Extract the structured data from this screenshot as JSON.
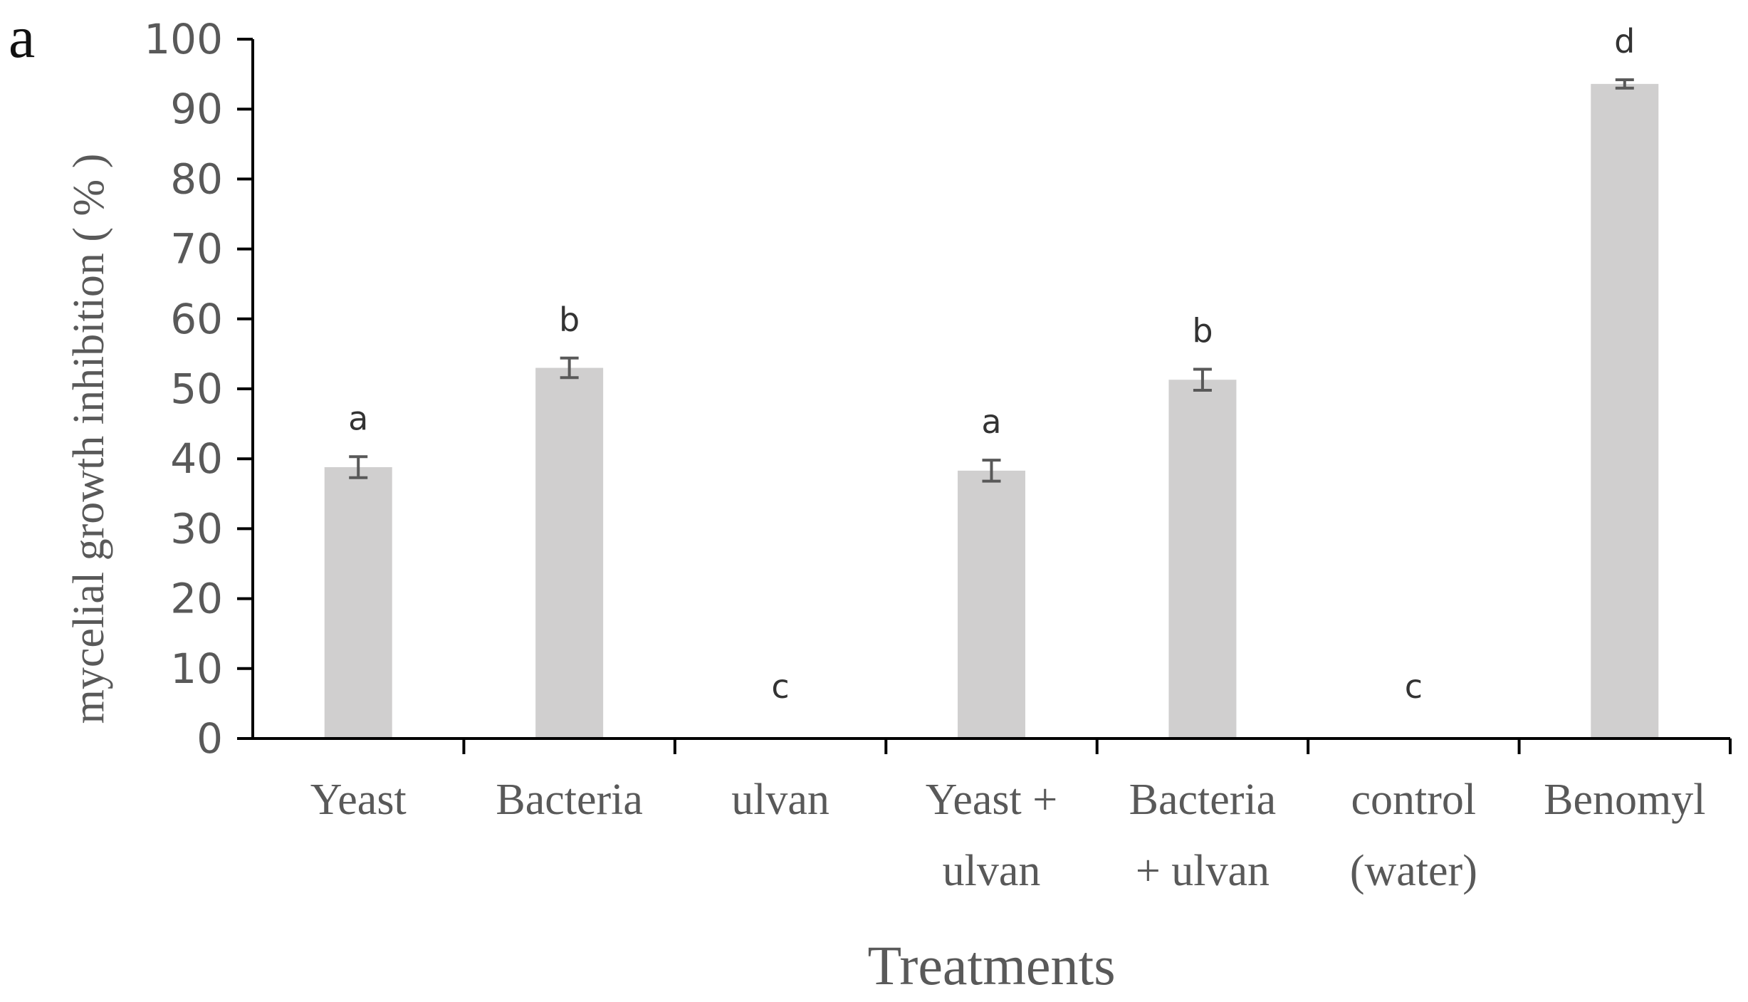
{
  "panel_label": "a",
  "chart_data": {
    "type": "bar",
    "categories": [
      [
        "Yeast"
      ],
      [
        "Bacteria"
      ],
      [
        "ulvan"
      ],
      [
        "Yeast +",
        "ulvan"
      ],
      [
        "Bacteria",
        "+ ulvan"
      ],
      [
        "control",
        "(water)"
      ],
      [
        "Benomyl"
      ]
    ],
    "values": [
      38.8,
      53.0,
      0,
      38.3,
      51.3,
      0,
      93.6
    ],
    "errors": [
      1.5,
      1.4,
      0,
      1.5,
      1.5,
      0,
      0.6
    ],
    "significance": [
      "a",
      "b",
      "c",
      "a",
      "b",
      "c",
      "d"
    ],
    "xlabel": "Treatments",
    "ylabel": "mycelial growth inhibition ( % )",
    "ylim": [
      0,
      100
    ],
    "yticks": [
      0,
      10,
      20,
      30,
      40,
      50,
      60,
      70,
      80,
      90,
      100
    ],
    "grid": false,
    "legend": "none",
    "colors": {
      "bar": "#d0cfcf",
      "axis": "#000000",
      "error_bar": "#595959",
      "text": "#595959"
    }
  }
}
